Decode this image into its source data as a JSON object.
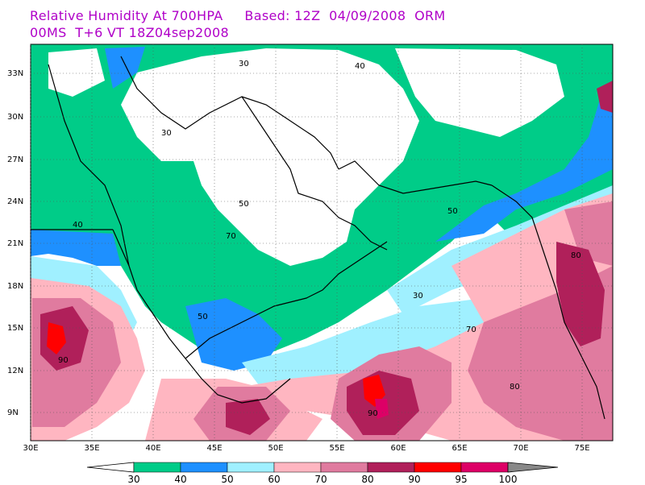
{
  "header": {
    "title_line1": "Relative Humidity At 700HPA     Based: 12Z  04/09/2008  ORM",
    "title_line2": "00MS  T+6 VT 18Z04sep2008"
  },
  "map": {
    "latitude_labels": [
      "33N",
      "30N",
      "27N",
      "24N",
      "21N",
      "18N",
      "15N",
      "12N",
      "9N"
    ],
    "longitude_labels": [
      "30E",
      "35E",
      "40E",
      "45E",
      "50E",
      "55E",
      "60E",
      "65E",
      "70E",
      "75E"
    ],
    "contour_labels": [
      "30",
      "40",
      "50",
      "60",
      "70",
      "80",
      "90"
    ]
  },
  "colorbar": {
    "labels": [
      "30",
      "40",
      "50",
      "60",
      "70",
      "80",
      "90",
      "95",
      "100"
    ],
    "colors": [
      "#00cc88",
      "#1e90ff",
      "#a0f0ff",
      "#ffb6c1",
      "#e07b9f",
      "#b0205a",
      "#ff0000",
      "#dd0066",
      "#888888"
    ]
  },
  "colors": {
    "title": "#b000c8",
    "below_30": "#ffffff",
    "land_border": "#000000"
  }
}
